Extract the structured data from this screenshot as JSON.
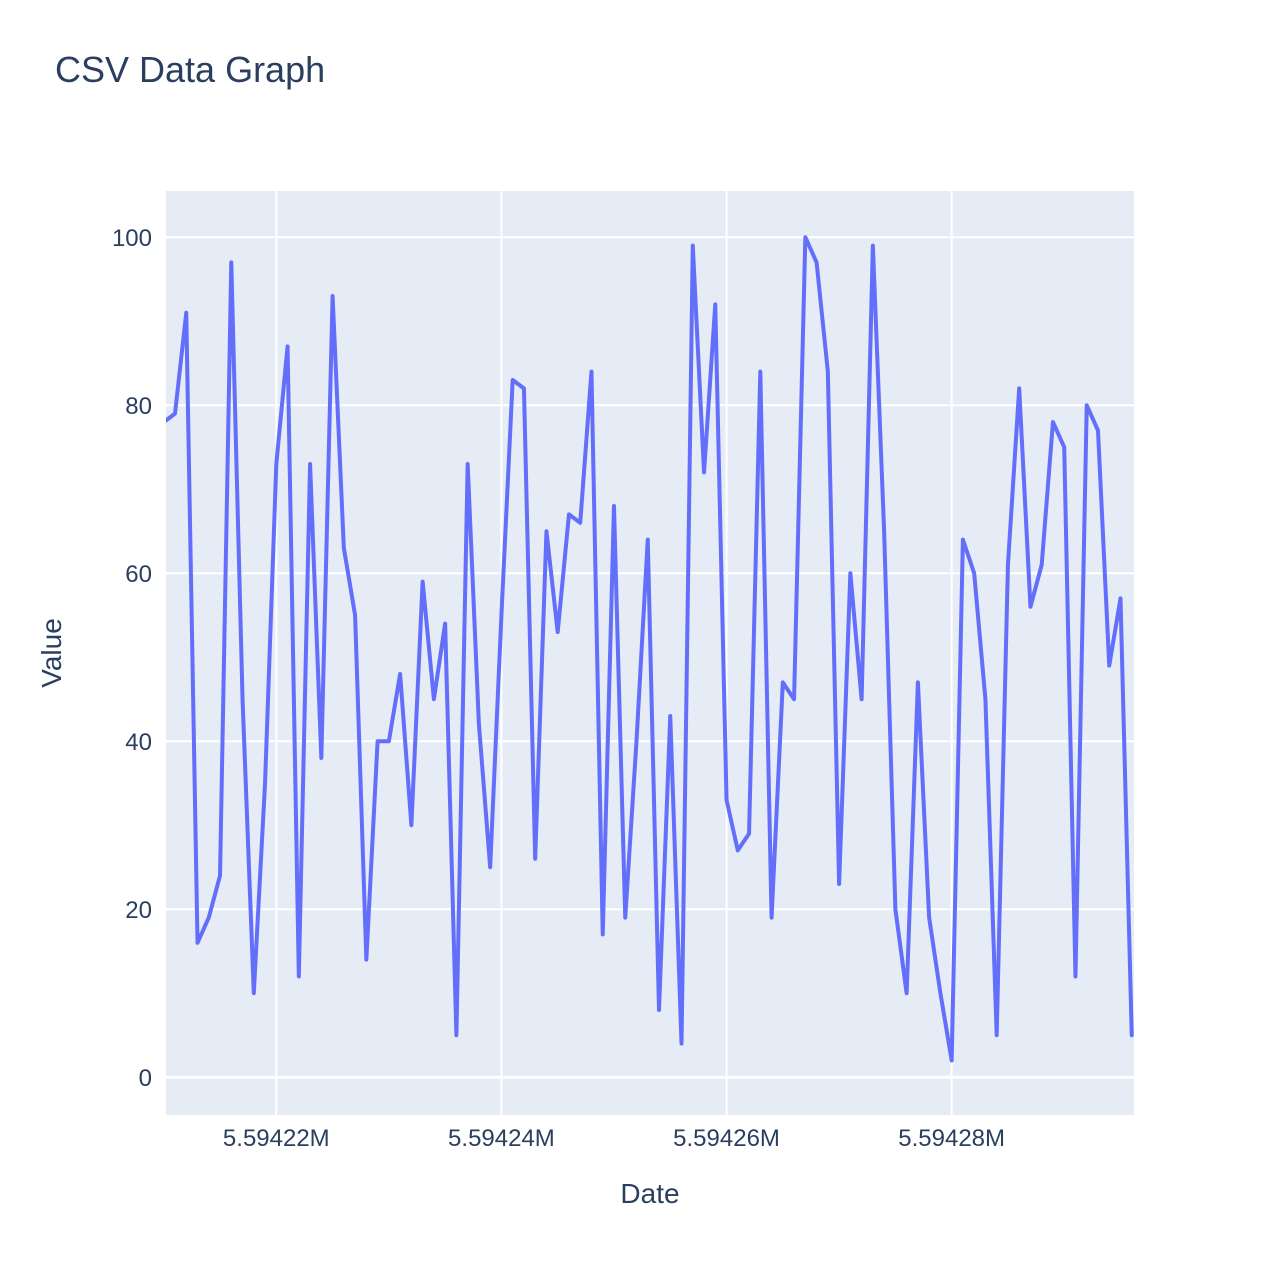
{
  "chart_data": {
    "type": "line",
    "title": "CSV Data Graph",
    "xlabel": "Date",
    "ylabel": "Value",
    "x_tick_labels": [
      "5.59422M",
      "5.59424M",
      "5.59426M",
      "5.59428M"
    ],
    "x_tick_values": [
      5594220,
      5594240,
      5594260,
      5594280
    ],
    "y_tick_labels": [
      "0",
      "20",
      "40",
      "60",
      "80",
      "100"
    ],
    "y_tick_values": [
      0,
      20,
      40,
      60,
      80,
      100
    ],
    "xlim": [
      5594210.2,
      5594296.2
    ],
    "ylim": [
      -4.5,
      105.5
    ],
    "grid": true,
    "background_color": "#E5ECF6",
    "grid_color": "#ffffff",
    "line_color": "#636EFA",
    "text_color": "#2A3F5F",
    "x": [
      5594210,
      5594211,
      5594212,
      5594213,
      5594214,
      5594215,
      5594216,
      5594217,
      5594218,
      5594219,
      5594220,
      5594221,
      5594222,
      5594223,
      5594224,
      5594225,
      5594226,
      5594227,
      5594228,
      5594229,
      5594230,
      5594231,
      5594232,
      5594233,
      5594234,
      5594235,
      5594236,
      5594237,
      5594238,
      5594239,
      5594240,
      5594241,
      5594242,
      5594243,
      5594244,
      5594245,
      5594246,
      5594247,
      5594248,
      5594249,
      5594250,
      5594251,
      5594252,
      5594253,
      5594254,
      5594255,
      5594256,
      5594257,
      5594258,
      5594259,
      5594260,
      5594261,
      5594262,
      5594263,
      5594264,
      5594265,
      5594266,
      5594267,
      5594268,
      5594269,
      5594270,
      5594271,
      5594272,
      5594273,
      5594274,
      5594275,
      5594276,
      5594277,
      5594278,
      5594279,
      5594280,
      5594281,
      5594282,
      5594283,
      5594284,
      5594285,
      5594286,
      5594287,
      5594288,
      5594289,
      5594290,
      5594291,
      5594292,
      5594293,
      5594294,
      5594295,
      5594296
    ],
    "series": [
      {
        "values": [
          78,
          79,
          91,
          16,
          19,
          24,
          97,
          45,
          10,
          35,
          73,
          87,
          12,
          73,
          38,
          93,
          63,
          55,
          14,
          40,
          40,
          48,
          30,
          59,
          45,
          54,
          5,
          73,
          42,
          25,
          55,
          83,
          82,
          26,
          65,
          53,
          67,
          66,
          84,
          17,
          68,
          19,
          40,
          64,
          8,
          43,
          4,
          99,
          72,
          92,
          33,
          27,
          29,
          84,
          19,
          47,
          45,
          100,
          97,
          84,
          23,
          60,
          45,
          99,
          65,
          20,
          10,
          47,
          19,
          10,
          2,
          64,
          60,
          45,
          5,
          61,
          82,
          56,
          61,
          78,
          75,
          12,
          80,
          77,
          49,
          57,
          5
        ]
      }
    ]
  }
}
